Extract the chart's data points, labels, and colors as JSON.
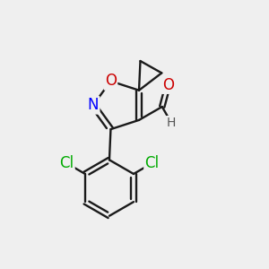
{
  "bg_color": "#efefef",
  "bond_color": "#1a1a1a",
  "N_color": "#0000ff",
  "O_color": "#cc0000",
  "Cl_color": "#00aa00",
  "H_color": "#555555",
  "bond_width": 1.7,
  "font_size_atom": 12,
  "font_size_H": 10,
  "xlim": [
    0,
    10
  ],
  "ylim": [
    0,
    10
  ]
}
